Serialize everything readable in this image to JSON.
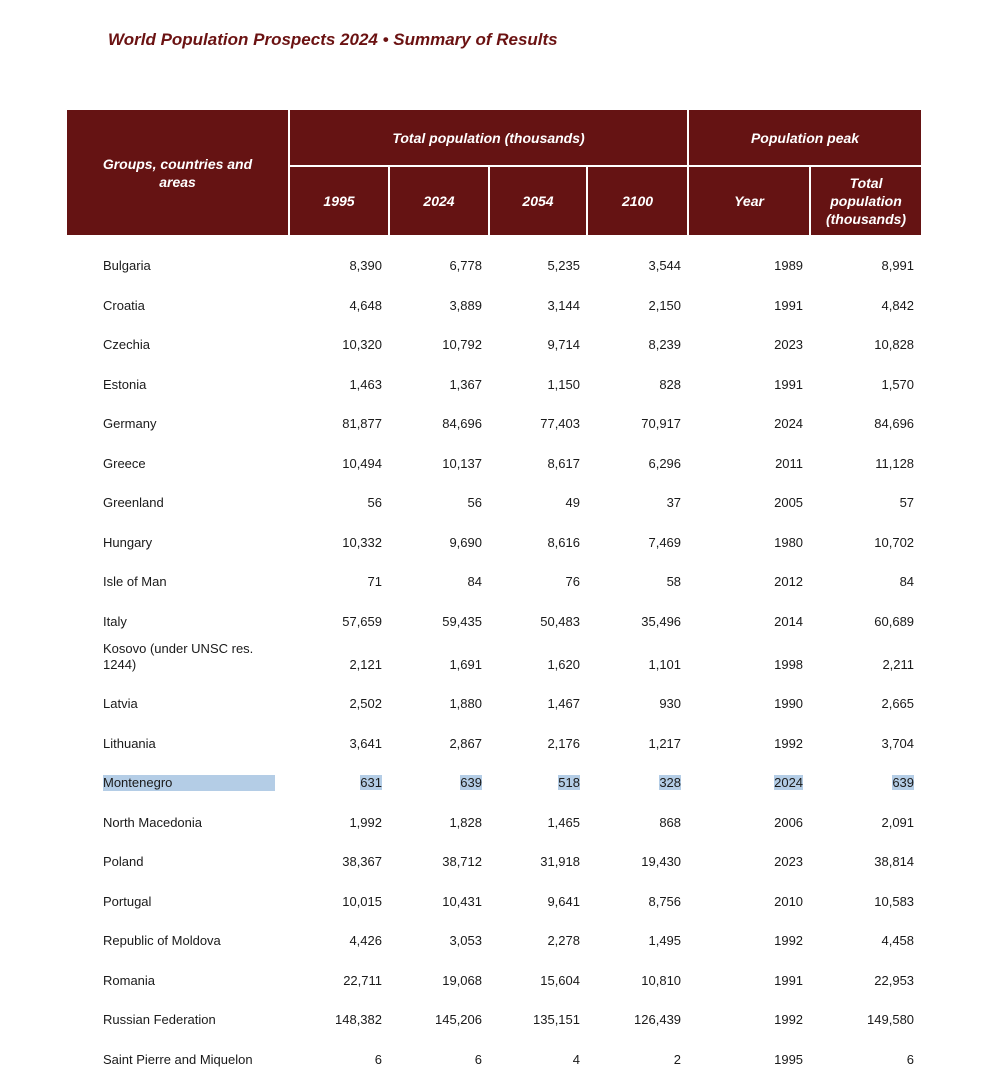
{
  "header": {
    "title": "World Population Prospects 2024 • Summary of Results"
  },
  "table": {
    "headers": {
      "groups": "Groups, countries and areas",
      "total_population": "Total population (thousands)",
      "population_peak": "Population peak",
      "columns": [
        "1995",
        "2024",
        "2054",
        "2100",
        "Year",
        "Total population (thousands)"
      ]
    },
    "rows": [
      [
        "Bulgaria",
        "8,390",
        "6,778",
        "5,235",
        "3,544",
        "1989",
        "8,991"
      ],
      [
        "Croatia",
        "4,648",
        "3,889",
        "3,144",
        "2,150",
        "1991",
        "4,842"
      ],
      [
        "Czechia",
        "10,320",
        "10,792",
        "9,714",
        "8,239",
        "2023",
        "10,828"
      ],
      [
        "Estonia",
        "1,463",
        "1,367",
        "1,150",
        "828",
        "1991",
        "1,570"
      ],
      [
        "Germany",
        "81,877",
        "84,696",
        "77,403",
        "70,917",
        "2024",
        "84,696"
      ],
      [
        "Greece",
        "10,494",
        "10,137",
        "8,617",
        "6,296",
        "2011",
        "11,128"
      ],
      [
        "Greenland",
        "56",
        "56",
        "49",
        "37",
        "2005",
        "57"
      ],
      [
        "Hungary",
        "10,332",
        "9,690",
        "8,616",
        "7,469",
        "1980",
        "10,702"
      ],
      [
        "Isle of Man",
        "71",
        "84",
        "76",
        "58",
        "2012",
        "84"
      ],
      [
        "Italy",
        "57,659",
        "59,435",
        "50,483",
        "35,496",
        "2014",
        "60,689"
      ],
      [
        "Kosovo (under UNSC res. 1244)",
        "2,121",
        "1,691",
        "1,620",
        "1,101",
        "1998",
        "2,211"
      ],
      [
        "Latvia",
        "2,502",
        "1,880",
        "1,467",
        "930",
        "1990",
        "2,665"
      ],
      [
        "Lithuania",
        "3,641",
        "2,867",
        "2,176",
        "1,217",
        "1992",
        "3,704"
      ],
      [
        "Montenegro",
        "631",
        "639",
        "518",
        "328",
        "2024",
        "639"
      ],
      [
        "North Macedonia",
        "1,992",
        "1,828",
        "1,465",
        "868",
        "2006",
        "2,091"
      ],
      [
        "Poland",
        "38,367",
        "38,712",
        "31,918",
        "19,430",
        "2023",
        "38,814"
      ],
      [
        "Portugal",
        "10,015",
        "10,431",
        "9,641",
        "8,756",
        "2010",
        "10,583"
      ],
      [
        "Republic of Moldova",
        "4,426",
        "3,053",
        "2,278",
        "1,495",
        "1992",
        "4,458"
      ],
      [
        "Romania",
        "22,711",
        "19,068",
        "15,604",
        "10,810",
        "1991",
        "22,953"
      ],
      [
        "Russian Federation",
        "148,382",
        "145,206",
        "135,151",
        "126,439",
        "1992",
        "149,580"
      ],
      [
        "Saint Pierre and Miquelon",
        "6",
        "6",
        "4",
        "2",
        "1995",
        "6"
      ]
    ]
  }
}
